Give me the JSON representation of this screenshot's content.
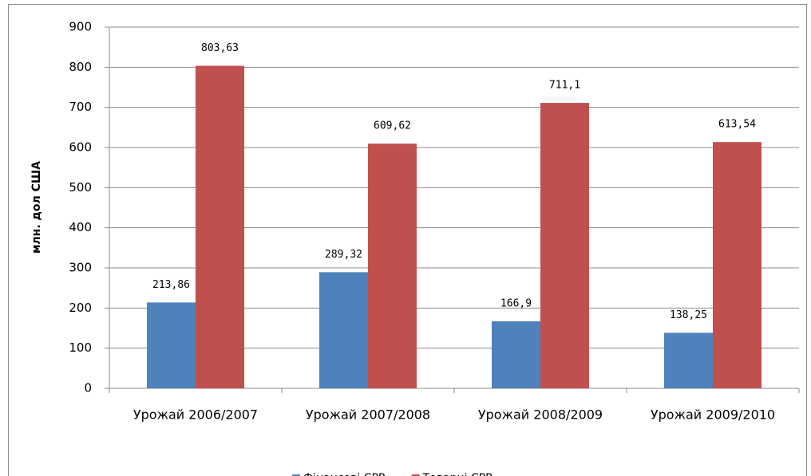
{
  "chart_data": {
    "type": "bar",
    "y_label": "млн. дол США",
    "categories": [
      "Урожай 2006/2007",
      "Урожай 2007/2008",
      "Урожай 2008/2009",
      "Урожай 2009/2010"
    ],
    "series": [
      {
        "name": "Фінансові CPR",
        "color": "#4f81bd",
        "values": [
          213.86,
          289.32,
          166.9,
          138.25
        ],
        "value_labels": [
          "213,86",
          "289,32",
          "166,9",
          "138,25"
        ]
      },
      {
        "name": "Товарні CPR",
        "color": "#c0504d",
        "values": [
          803.63,
          609.62,
          711.1,
          613.54
        ],
        "value_labels": [
          "803,63",
          "609,62",
          "711,1",
          "613,54"
        ]
      }
    ],
    "ylim": [
      0,
      900
    ],
    "yticks": [
      0,
      100,
      200,
      300,
      400,
      500,
      600,
      700,
      800,
      900
    ],
    "grid": true,
    "legend": "bottom"
  }
}
